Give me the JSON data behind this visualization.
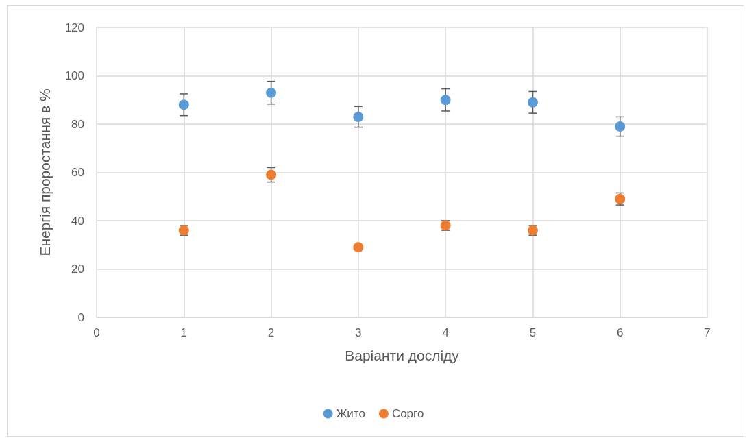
{
  "chart_data": {
    "type": "scatter",
    "xlabel": "Варіанти досліду",
    "ylabel": "Енергія проростання в %",
    "x": [
      1,
      2,
      3,
      4,
      5,
      6
    ],
    "series": [
      {
        "name": "Жито",
        "color": "#5b9bd5",
        "values": [
          88,
          93,
          83,
          90,
          89,
          79
        ],
        "errors": [
          4.5,
          4.7,
          4.3,
          4.6,
          4.5,
          4
        ]
      },
      {
        "name": "Сорго",
        "color": "#ed7d31",
        "values": [
          36,
          59,
          29,
          38,
          36,
          49
        ],
        "errors": [
          2,
          3,
          null,
          2,
          2,
          2.5
        ]
      }
    ],
    "xlim": [
      0,
      7
    ],
    "xticks": [
      0,
      1,
      2,
      3,
      4,
      5,
      6,
      7
    ],
    "ylim": [
      0,
      120
    ],
    "yticks": [
      0,
      20,
      40,
      60,
      80,
      100,
      120
    ],
    "grid": true,
    "legend": "bottom",
    "marker": "circle"
  }
}
